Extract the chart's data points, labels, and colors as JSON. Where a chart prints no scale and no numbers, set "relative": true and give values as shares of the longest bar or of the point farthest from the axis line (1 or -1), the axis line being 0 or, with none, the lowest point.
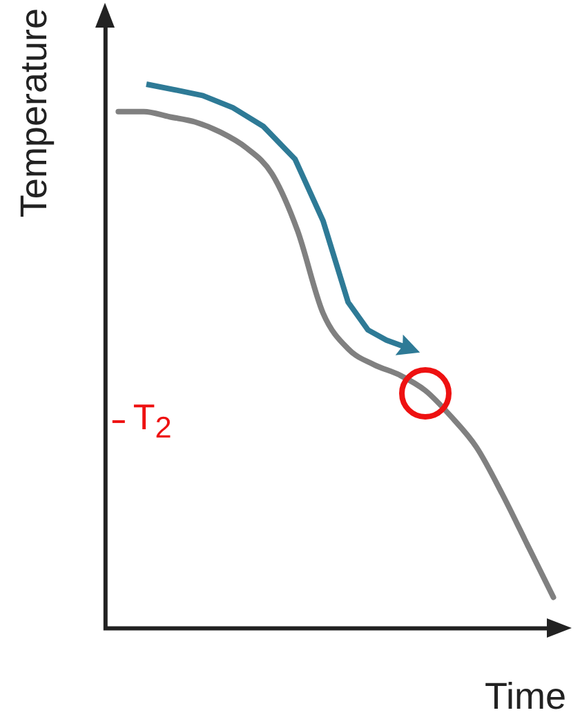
{
  "chart_data": {
    "type": "line",
    "relative": true,
    "xlabel": "Time",
    "ylabel": "Temperature",
    "categories": [
      null,
      null,
      null,
      null,
      null,
      null,
      null,
      null,
      null,
      null,
      null,
      null,
      null,
      null,
      null,
      null,
      null,
      null
    ],
    "series": [
      {
        "color": "#808080",
        "values": [
          1,
          1,
          0.99,
          0.98,
          0.96,
          0.93,
          0.88,
          0.77,
          0.61,
          0.54,
          0.51,
          0.49,
          0.46,
          0.41,
          0.35,
          0.26,
          0.16,
          0.06
        ]
      }
    ],
    "ref_lines": [
      {
        "axis": "y",
        "value": 0.4,
        "label": "T$_{2}$",
        "color": "#ee1111"
      }
    ],
    "grid": false,
    "legend": false,
    "marker": "none",
    "line_style": "solid"
  }
}
